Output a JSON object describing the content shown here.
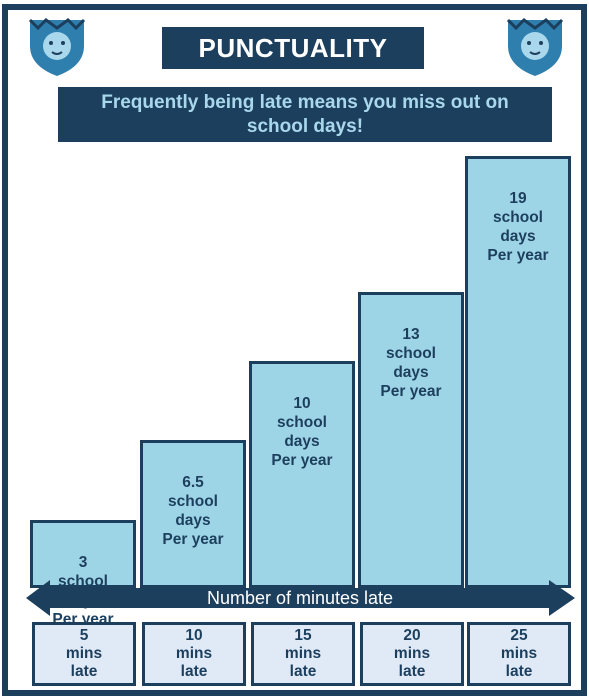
{
  "title": "PUNCTUALITY",
  "subtitle": "Frequently being late means you miss out on school days!",
  "colors": {
    "navy": "#1d3f5e",
    "bar_fill": "#9ed5e6",
    "box_fill": "#dfeaf6"
  },
  "icons": {
    "crest": "lion-crest-icon"
  },
  "chart_data": {
    "type": "bar",
    "xlabel": "Number of minutes late",
    "categories": [
      "5\nmins\nlate",
      "10\nmins\nlate",
      "15\nmins\nlate",
      "20\nmins\nlate",
      "25\nmins\nlate"
    ],
    "values": [
      3,
      6.5,
      10,
      13,
      19
    ],
    "value_labels": [
      "3\nschool\ndays\nPer year",
      "6.5\nschool\ndays\nPer year",
      "10\nschool\ndays\nPer year",
      "13\nschool\ndays\nPer year",
      "19\nschool\ndays\nPer year"
    ]
  }
}
